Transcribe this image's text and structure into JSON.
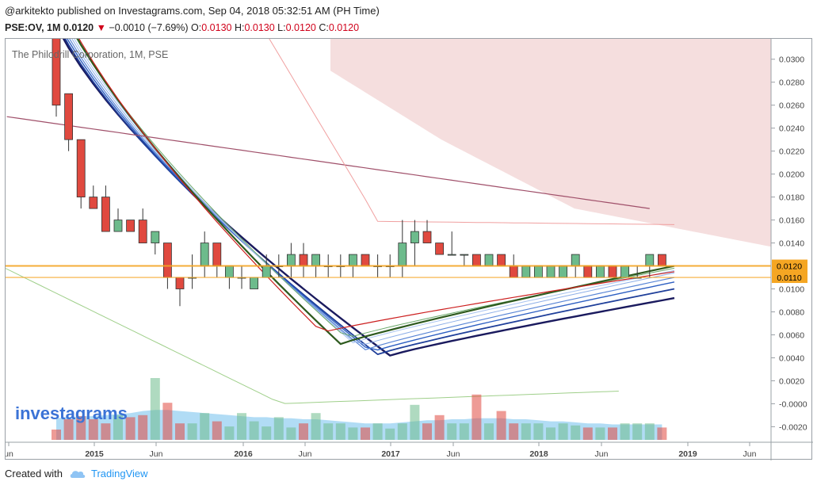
{
  "header": {
    "publish_text": "@arkitekto published on Investagrams.com, Sep 04, 2018 05:32:51 AM (PH Time)",
    "symbol": "PSE:OV, 1M",
    "last": "0.0120",
    "change": "−0.0010 (−7.69%)",
    "open_label": "O:",
    "open": "0.0130",
    "high_label": "H:",
    "high": "0.0130",
    "low_label": "L:",
    "low": "0.0120",
    "close_label": "C:",
    "close": "0.0120"
  },
  "footer": {
    "created_with": "Created with",
    "brand": "TradingView"
  },
  "colors": {
    "up": "#6dbb8c",
    "down": "#e0493f",
    "cloud": "#f3d6d6",
    "price_line": "#f5a623",
    "watermark": "#3b73d6"
  },
  "chart_data": {
    "type": "candlestick",
    "title": "The Philodrill Corporation, 1M, PSE",
    "watermark": "investagrams",
    "x_tick_labels": [
      "un",
      "2015",
      "Jun",
      "2016",
      "Jun",
      "2017",
      "Jun",
      "2018",
      "Jun",
      "2019",
      "Jun"
    ],
    "y_tick_labels": [
      "0.0300",
      "0.0280",
      "0.0260",
      "0.0240",
      "0.0220",
      "0.0200",
      "0.0180",
      "0.0160",
      "0.0140",
      "0.0100",
      "0.0080",
      "0.0060",
      "0.0040",
      "0.0020",
      "-0.0000",
      "-0.0020"
    ],
    "ylim": [
      -0.0028,
      0.0315
    ],
    "price_labels": [
      "0.0120",
      "0.0110"
    ],
    "price_levels": [
      0.012,
      0.011
    ],
    "candles": [
      {
        "o": 0.032,
        "h": 0.032,
        "l": 0.025,
        "c": 0.026
      },
      {
        "o": 0.027,
        "h": 0.027,
        "l": 0.022,
        "c": 0.023
      },
      {
        "o": 0.023,
        "h": 0.023,
        "l": 0.017,
        "c": 0.018
      },
      {
        "o": 0.018,
        "h": 0.019,
        "l": 0.017,
        "c": 0.017
      },
      {
        "o": 0.018,
        "h": 0.019,
        "l": 0.015,
        "c": 0.015
      },
      {
        "o": 0.015,
        "h": 0.017,
        "l": 0.015,
        "c": 0.016
      },
      {
        "o": 0.016,
        "h": 0.016,
        "l": 0.015,
        "c": 0.015
      },
      {
        "o": 0.016,
        "h": 0.017,
        "l": 0.014,
        "c": 0.014
      },
      {
        "o": 0.014,
        "h": 0.015,
        "l": 0.013,
        "c": 0.015
      },
      {
        "o": 0.014,
        "h": 0.014,
        "l": 0.01,
        "c": 0.011
      },
      {
        "o": 0.011,
        "h": 0.011,
        "l": 0.0085,
        "c": 0.01
      },
      {
        "o": 0.011,
        "h": 0.013,
        "l": 0.01,
        "c": 0.011
      },
      {
        "o": 0.012,
        "h": 0.015,
        "l": 0.011,
        "c": 0.014
      },
      {
        "o": 0.014,
        "h": 0.014,
        "l": 0.011,
        "c": 0.012
      },
      {
        "o": 0.011,
        "h": 0.012,
        "l": 0.01,
        "c": 0.012
      },
      {
        "o": 0.011,
        "h": 0.012,
        "l": 0.01,
        "c": 0.011
      },
      {
        "o": 0.01,
        "h": 0.011,
        "l": 0.01,
        "c": 0.011
      },
      {
        "o": 0.011,
        "h": 0.013,
        "l": 0.011,
        "c": 0.012
      },
      {
        "o": 0.012,
        "h": 0.013,
        "l": 0.011,
        "c": 0.012
      },
      {
        "o": 0.012,
        "h": 0.014,
        "l": 0.011,
        "c": 0.013
      },
      {
        "o": 0.013,
        "h": 0.014,
        "l": 0.011,
        "c": 0.012
      },
      {
        "o": 0.012,
        "h": 0.013,
        "l": 0.011,
        "c": 0.013
      },
      {
        "o": 0.012,
        "h": 0.013,
        "l": 0.011,
        "c": 0.012
      },
      {
        "o": 0.012,
        "h": 0.013,
        "l": 0.011,
        "c": 0.012
      },
      {
        "o": 0.012,
        "h": 0.013,
        "l": 0.011,
        "c": 0.013
      },
      {
        "o": 0.013,
        "h": 0.013,
        "l": 0.012,
        "c": 0.012
      },
      {
        "o": 0.012,
        "h": 0.013,
        "l": 0.011,
        "c": 0.012
      },
      {
        "o": 0.012,
        "h": 0.013,
        "l": 0.011,
        "c": 0.012
      },
      {
        "o": 0.012,
        "h": 0.016,
        "l": 0.011,
        "c": 0.014
      },
      {
        "o": 0.014,
        "h": 0.016,
        "l": 0.012,
        "c": 0.015
      },
      {
        "o": 0.015,
        "h": 0.016,
        "l": 0.014,
        "c": 0.014
      },
      {
        "o": 0.014,
        "h": 0.014,
        "l": 0.013,
        "c": 0.013
      },
      {
        "o": 0.013,
        "h": 0.015,
        "l": 0.013,
        "c": 0.013
      },
      {
        "o": 0.013,
        "h": 0.013,
        "l": 0.012,
        "c": 0.013
      },
      {
        "o": 0.013,
        "h": 0.013,
        "l": 0.012,
        "c": 0.012
      },
      {
        "o": 0.012,
        "h": 0.013,
        "l": 0.012,
        "c": 0.013
      },
      {
        "o": 0.013,
        "h": 0.013,
        "l": 0.012,
        "c": 0.012
      },
      {
        "o": 0.012,
        "h": 0.013,
        "l": 0.011,
        "c": 0.011
      },
      {
        "o": 0.011,
        "h": 0.012,
        "l": 0.011,
        "c": 0.012
      },
      {
        "o": 0.011,
        "h": 0.012,
        "l": 0.011,
        "c": 0.012
      },
      {
        "o": 0.011,
        "h": 0.012,
        "l": 0.011,
        "c": 0.012
      },
      {
        "o": 0.011,
        "h": 0.012,
        "l": 0.011,
        "c": 0.012
      },
      {
        "o": 0.012,
        "h": 0.013,
        "l": 0.011,
        "c": 0.013
      },
      {
        "o": 0.012,
        "h": 0.012,
        "l": 0.011,
        "c": 0.011
      },
      {
        "o": 0.011,
        "h": 0.012,
        "l": 0.011,
        "c": 0.012
      },
      {
        "o": 0.012,
        "h": 0.012,
        "l": 0.011,
        "c": 0.011
      },
      {
        "o": 0.011,
        "h": 0.012,
        "l": 0.011,
        "c": 0.012
      },
      {
        "o": 0.011,
        "h": 0.012,
        "l": 0.011,
        "c": 0.011
      },
      {
        "o": 0.012,
        "h": 0.013,
        "l": 0.011,
        "c": 0.013
      },
      {
        "o": 0.013,
        "h": 0.013,
        "l": 0.012,
        "c": 0.012
      }
    ],
    "volume": [
      1,
      2,
      2.3,
      2,
      1.6,
      2.4,
      2.2,
      2.4,
      6,
      3.6,
      1.6,
      1.6,
      2.6,
      1.8,
      1.3,
      2.6,
      1.8,
      1.3,
      2.2,
      1.2,
      1.6,
      2.6,
      1.6,
      1.6,
      1.2,
      1.2,
      1.6,
      1.1,
      1.6,
      3.4,
      1.6,
      2.4,
      1.6,
      1.6,
      4.4,
      1.6,
      2.8,
      1.6,
      1.6,
      1.6,
      1.2,
      1.6,
      1.4,
      1.2,
      1.2,
      1.2,
      1.6,
      1.6,
      1.6,
      1.2
    ],
    "volume_ma": [
      2.1,
      2.2,
      2.3,
      2.3,
      2.4,
      2.5,
      2.6,
      2.8,
      2.9,
      2.9,
      2.8,
      2.7,
      2.6,
      2.5,
      2.4,
      2.3,
      2.2,
      2.2,
      2.1,
      2.1,
      2.0,
      2.0,
      1.9,
      1.8,
      1.7,
      1.6,
      1.6,
      1.6,
      1.7,
      1.8,
      1.9,
      1.9,
      2.0,
      2.0,
      2.1,
      2.1,
      2.1,
      2.0,
      2.0,
      1.9,
      1.8,
      1.8,
      1.7,
      1.6,
      1.6,
      1.5,
      1.5,
      1.5,
      1.5,
      1.5
    ]
  }
}
